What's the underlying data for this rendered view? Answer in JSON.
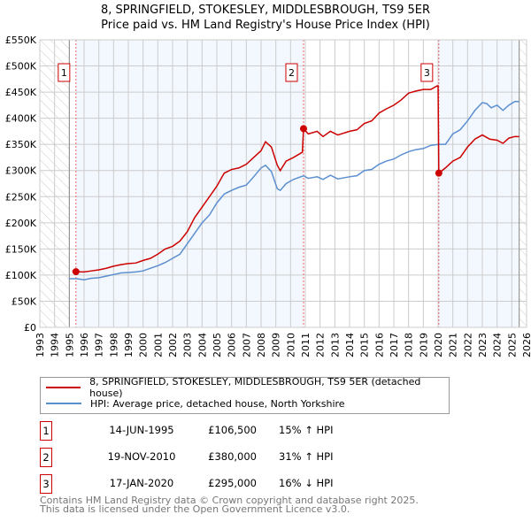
{
  "chart_data": {
    "type": "line",
    "title": "8, SPRINGFIELD, STOKESLEY, MIDDLESBROUGH, TS9 5ER",
    "subtitle": "Price paid vs. HM Land Registry's House Price Index (HPI)",
    "xlim": [
      1993,
      2026
    ],
    "ylim": [
      0,
      550000
    ],
    "x_ticks": [
      1993,
      1994,
      1995,
      1996,
      1997,
      1998,
      1999,
      2000,
      2001,
      2002,
      2003,
      2004,
      2005,
      2006,
      2007,
      2008,
      2009,
      2010,
      2011,
      2012,
      2013,
      2014,
      2015,
      2016,
      2017,
      2018,
      2019,
      2020,
      2021,
      2022,
      2023,
      2024,
      2025,
      2026
    ],
    "y_ticks": [
      {
        "v": 0,
        "label": "£0"
      },
      {
        "v": 50000,
        "label": "£50K"
      },
      {
        "v": 100000,
        "label": "£100K"
      },
      {
        "v": 150000,
        "label": "£150K"
      },
      {
        "v": 200000,
        "label": "£200K"
      },
      {
        "v": 250000,
        "label": "£250K"
      },
      {
        "v": 300000,
        "label": "£300K"
      },
      {
        "v": 350000,
        "label": "£350K"
      },
      {
        "v": 400000,
        "label": "£400K"
      },
      {
        "v": 450000,
        "label": "£450K"
      },
      {
        "v": 500000,
        "label": "£500K"
      },
      {
        "v": 550000,
        "label": "£550K"
      }
    ],
    "grid": true,
    "hatched_before": 1995,
    "hatched_after": 2025.5,
    "series": [
      {
        "name": "8, SPRINGFIELD, STOKESLEY, MIDDLESBROUGH, TS9 5ER (detached house)",
        "color": "#cc0000",
        "points": [
          [
            1995.2,
            108
          ],
          [
            1995.45,
            106.5
          ],
          [
            1996,
            106
          ],
          [
            1996.5,
            108
          ],
          [
            1997,
            110
          ],
          [
            1997.5,
            113
          ],
          [
            1998,
            117
          ],
          [
            1998.5,
            120
          ],
          [
            1999,
            122
          ],
          [
            1999.5,
            123
          ],
          [
            2000,
            128
          ],
          [
            2000.5,
            132
          ],
          [
            2001,
            140
          ],
          [
            2001.5,
            150
          ],
          [
            2002,
            155
          ],
          [
            2002.5,
            165
          ],
          [
            2003,
            183
          ],
          [
            2003.5,
            210
          ],
          [
            2004,
            230
          ],
          [
            2004.5,
            250
          ],
          [
            2005,
            270
          ],
          [
            2005.5,
            295
          ],
          [
            2006,
            302
          ],
          [
            2006.5,
            305
          ],
          [
            2007,
            312
          ],
          [
            2007.5,
            325
          ],
          [
            2008,
            338
          ],
          [
            2008.3,
            355
          ],
          [
            2008.7,
            345
          ],
          [
            2009.1,
            310
          ],
          [
            2009.3,
            300
          ],
          [
            2009.7,
            318
          ],
          [
            2010.2,
            325
          ],
          [
            2010.8,
            335
          ],
          [
            2010.88,
            380
          ],
          [
            2011.2,
            370
          ],
          [
            2011.8,
            375
          ],
          [
            2012.2,
            365
          ],
          [
            2012.7,
            375
          ],
          [
            2013.2,
            368
          ],
          [
            2014,
            375
          ],
          [
            2014.5,
            378
          ],
          [
            2015,
            390
          ],
          [
            2015.5,
            395
          ],
          [
            2016,
            410
          ],
          [
            2016.5,
            418
          ],
          [
            2017,
            425
          ],
          [
            2017.5,
            435
          ],
          [
            2018,
            448
          ],
          [
            2018.5,
            452
          ],
          [
            2019,
            455
          ],
          [
            2019.5,
            455
          ],
          [
            2019.95,
            462
          ],
          [
            2020.0,
            462
          ],
          [
            2020.05,
            295
          ],
          [
            2020.5,
            305
          ],
          [
            2021,
            318
          ],
          [
            2021.5,
            325
          ],
          [
            2022,
            345
          ],
          [
            2022.5,
            360
          ],
          [
            2023,
            368
          ],
          [
            2023.5,
            360
          ],
          [
            2024,
            358
          ],
          [
            2024.4,
            352
          ],
          [
            2024.8,
            362
          ],
          [
            2025.2,
            365
          ],
          [
            2025.5,
            365
          ]
        ]
      },
      {
        "name": "HPI: Average price, detached house, North Yorkshire",
        "color": "#5b8fd0",
        "points": [
          [
            1995,
            93
          ],
          [
            1995.5,
            93
          ],
          [
            1996,
            91
          ],
          [
            1996.5,
            94
          ],
          [
            1997,
            95
          ],
          [
            1997.5,
            98
          ],
          [
            1998,
            101
          ],
          [
            1998.5,
            104
          ],
          [
            1999,
            105
          ],
          [
            1999.5,
            106
          ],
          [
            2000,
            108
          ],
          [
            2000.5,
            113
          ],
          [
            2001,
            118
          ],
          [
            2001.5,
            124
          ],
          [
            2002,
            132
          ],
          [
            2002.5,
            140
          ],
          [
            2003,
            160
          ],
          [
            2003.5,
            180
          ],
          [
            2004,
            200
          ],
          [
            2004.5,
            215
          ],
          [
            2005,
            238
          ],
          [
            2005.5,
            255
          ],
          [
            2006,
            262
          ],
          [
            2006.5,
            268
          ],
          [
            2007,
            272
          ],
          [
            2007.5,
            288
          ],
          [
            2008,
            305
          ],
          [
            2008.3,
            310
          ],
          [
            2008.7,
            298
          ],
          [
            2009.1,
            265
          ],
          [
            2009.3,
            262
          ],
          [
            2009.7,
            275
          ],
          [
            2010.2,
            283
          ],
          [
            2010.88,
            290
          ],
          [
            2011.2,
            285
          ],
          [
            2011.8,
            288
          ],
          [
            2012.2,
            283
          ],
          [
            2012.7,
            291
          ],
          [
            2013.2,
            284
          ],
          [
            2014,
            288
          ],
          [
            2014.5,
            290
          ],
          [
            2015,
            300
          ],
          [
            2015.5,
            302
          ],
          [
            2016,
            312
          ],
          [
            2016.5,
            318
          ],
          [
            2017,
            322
          ],
          [
            2017.5,
            330
          ],
          [
            2018,
            336
          ],
          [
            2018.5,
            340
          ],
          [
            2019,
            342
          ],
          [
            2019.5,
            348
          ],
          [
            2020.05,
            350
          ],
          [
            2020.5,
            350
          ],
          [
            2021,
            370
          ],
          [
            2021.5,
            378
          ],
          [
            2022,
            395
          ],
          [
            2022.5,
            415
          ],
          [
            2023,
            430
          ],
          [
            2023.3,
            428
          ],
          [
            2023.6,
            420
          ],
          [
            2024,
            425
          ],
          [
            2024.4,
            415
          ],
          [
            2024.8,
            425
          ],
          [
            2025.2,
            432
          ],
          [
            2025.5,
            432
          ]
        ]
      }
    ],
    "sales": [
      {
        "n": "1",
        "x": 1995.45,
        "price": 106500,
        "date": "14-JUN-1995",
        "price_label": "£106,500",
        "hpi": "15% ↑ HPI"
      },
      {
        "n": "2",
        "x": 2010.88,
        "price": 380000,
        "date": "19-NOV-2010",
        "price_label": "£380,000",
        "hpi": "31% ↑ HPI"
      },
      {
        "n": "3",
        "x": 2020.05,
        "price": 295000,
        "date": "17-JAN-2020",
        "price_label": "£295,000",
        "hpi": "16% ↓ HPI"
      }
    ]
  },
  "footer": {
    "line1": "Contains HM Land Registry data © Crown copyright and database right 2025.",
    "line2": "This data is licensed under the Open Government Licence v3.0."
  }
}
